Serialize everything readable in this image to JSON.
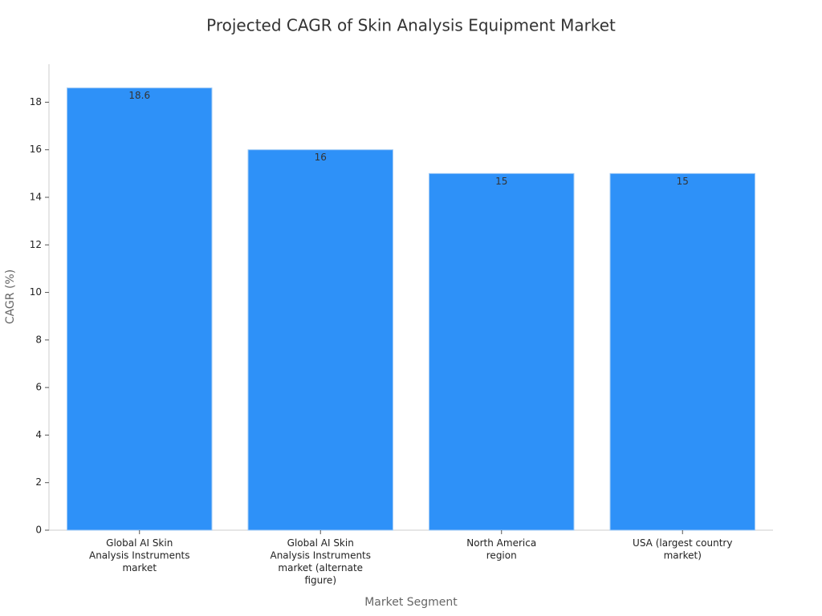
{
  "chart_data": {
    "type": "bar",
    "title": "Projected CAGR of Skin Analysis Equipment Market",
    "x_label": "Market Segment",
    "y_label": "CAGR (%)",
    "categories": [
      "Global AI Skin Analysis Instruments market",
      "Global AI Skin Analysis Instruments market (alternate figure)",
      "North America region",
      "USA (largest country market)"
    ],
    "values": [
      18.6,
      16,
      15,
      15
    ],
    "color": "#2e91f8",
    "ylim": [
      0,
      19.6
    ],
    "yticks": [
      0,
      2,
      4,
      6,
      8,
      10,
      12,
      14,
      16,
      18
    ]
  }
}
